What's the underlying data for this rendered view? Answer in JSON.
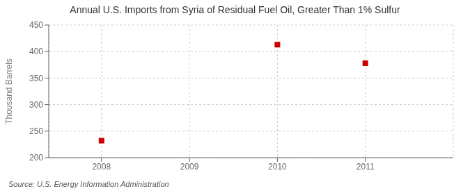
{
  "chart_data": {
    "type": "scatter",
    "title": "Annual U.S. Imports from Syria of Residual Fuel Oil, Greater Than 1% Sulfur",
    "ylabel": "Thousand Barrels",
    "annotations": [
      "Source: U.S. Energy Information Administration"
    ],
    "x": [
      2008,
      2010,
      2011
    ],
    "values": [
      232,
      413,
      378
    ],
    "color": "#cc0000",
    "marker": "square",
    "xlim": [
      2007.4,
      2012.0
    ],
    "ylim": [
      200,
      450
    ],
    "xticks": [
      2008,
      2009,
      2010,
      2011
    ],
    "yticks": [
      200,
      250,
      300,
      350,
      400,
      450
    ],
    "grid": true
  }
}
